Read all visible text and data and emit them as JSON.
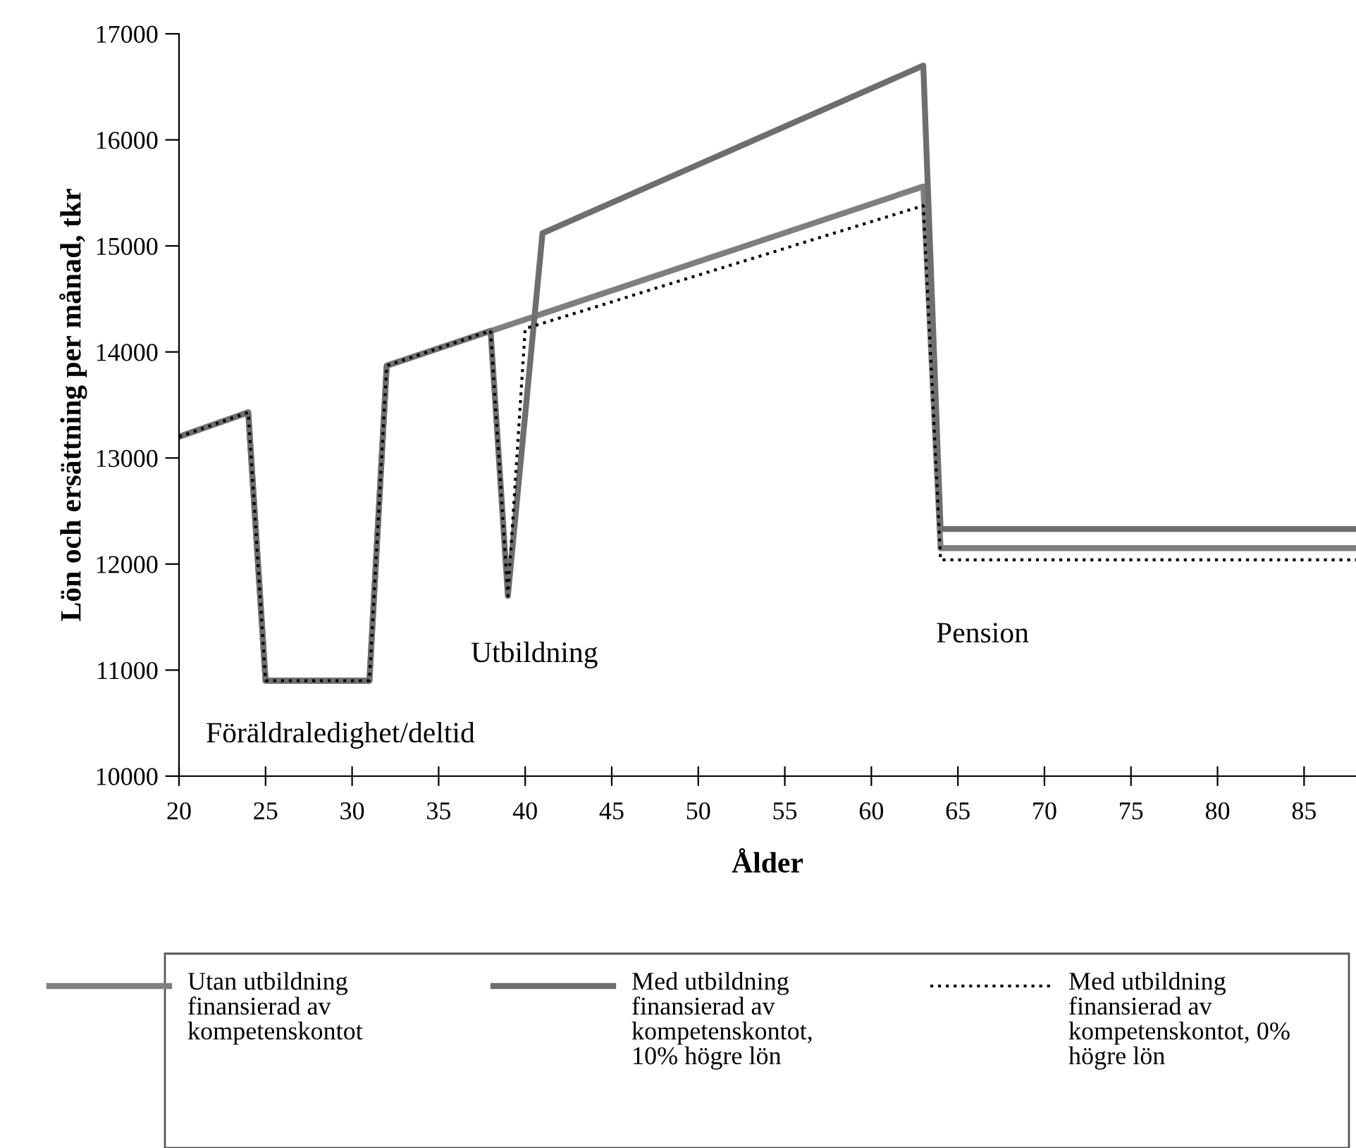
{
  "chart_data": {
    "type": "line",
    "xlabel": "Ålder",
    "ylabel": "Lön och ersättning per månad, tkr",
    "xlim": [
      20,
      88
    ],
    "xticks": [
      20,
      25,
      30,
      35,
      40,
      45,
      50,
      55,
      60,
      65,
      70,
      75,
      80,
      85
    ],
    "ylim": [
      10000,
      17000
    ],
    "yticks": [
      10000,
      11000,
      12000,
      13000,
      14000,
      15000,
      16000,
      17000
    ],
    "grid": false,
    "legend": "bottom",
    "marker": "none",
    "series": [
      {
        "name": "Utan utbildning\nfinansierad av\nkompetenskontot",
        "color": "#7f7f7f",
        "line_style": "solid",
        "x": [
          20,
          24,
          25,
          31,
          32,
          63,
          64,
          88
        ],
        "values": [
          13200,
          13430,
          10900,
          10900,
          13870,
          15560,
          12150,
          12150
        ]
      },
      {
        "name": "Med utbildning\nfinansierad av\nkompetenskontot,\n10% högre lön",
        "color": "#6e6e6e",
        "line_style": "solid",
        "x": [
          20,
          24,
          25,
          31,
          32,
          38,
          39,
          41,
          63,
          64,
          88
        ],
        "values": [
          13200,
          13430,
          10900,
          10900,
          13870,
          14200,
          11700,
          15120,
          16700,
          12330,
          12330
        ]
      },
      {
        "name": "Med utbildning\nfinansierad av\nkompetenskontot, 0%\nhögre lön",
        "color": "#000000",
        "line_style": "dotted",
        "x": [
          20,
          24,
          25,
          31,
          32,
          38,
          39,
          40,
          63,
          64,
          88
        ],
        "values": [
          13200,
          13430,
          10900,
          10900,
          13870,
          14200,
          11700,
          14220,
          15380,
          12040,
          12040
        ]
      }
    ],
    "annotations": [
      "Föräldraledighet/deltid",
      "Utbildning",
      "Pension"
    ]
  }
}
